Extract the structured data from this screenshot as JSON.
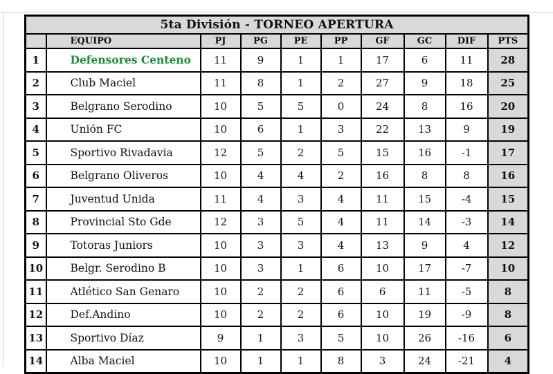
{
  "colors": {
    "header_bg": "#d9d9d9",
    "pts_column_bg": "#d9d9d9",
    "border": "#000000",
    "leader_green": "#1f8b3e",
    "text": "#111111",
    "gridline": "#cacaca",
    "page_bg": "#ffffff"
  },
  "table": {
    "title": "5ta División - TORNEO APERTURA",
    "columns": [
      "",
      "EQUIPO",
      "PJ",
      "PG",
      "PE",
      "PP",
      "GF",
      "GC",
      "DIF",
      "PTS"
    ],
    "rows": [
      {
        "pos": "1",
        "equipo": "Defensores Centeno",
        "pj": "11",
        "pg": "9",
        "pe": "1",
        "pp": "1",
        "gf": "17",
        "gc": "6",
        "dif": "11",
        "pts": "28",
        "leader": true
      },
      {
        "pos": "2",
        "equipo": "Club Maciel",
        "pj": "11",
        "pg": "8",
        "pe": "1",
        "pp": "2",
        "gf": "27",
        "gc": "9",
        "dif": "18",
        "pts": "25",
        "leader": false
      },
      {
        "pos": "3",
        "equipo": "Belgrano Serodino",
        "pj": "10",
        "pg": "5",
        "pe": "5",
        "pp": "0",
        "gf": "24",
        "gc": "8",
        "dif": "16",
        "pts": "20",
        "leader": false
      },
      {
        "pos": "4",
        "equipo": "Unión FC",
        "pj": "10",
        "pg": "6",
        "pe": "1",
        "pp": "3",
        "gf": "22",
        "gc": "13",
        "dif": "9",
        "pts": "19",
        "leader": false
      },
      {
        "pos": "5",
        "equipo": "Sportivo Rivadavia",
        "pj": "12",
        "pg": "5",
        "pe": "2",
        "pp": "5",
        "gf": "15",
        "gc": "16",
        "dif": "-1",
        "pts": "17",
        "leader": false
      },
      {
        "pos": "6",
        "equipo": "Belgrano Oliveros",
        "pj": "10",
        "pg": "4",
        "pe": "4",
        "pp": "2",
        "gf": "16",
        "gc": "8",
        "dif": "8",
        "pts": "16",
        "leader": false
      },
      {
        "pos": "7",
        "equipo": "Juventud Unida",
        "pj": "11",
        "pg": "4",
        "pe": "3",
        "pp": "4",
        "gf": "11",
        "gc": "15",
        "dif": "-4",
        "pts": "15",
        "leader": false
      },
      {
        "pos": "8",
        "equipo": "Provincial Sto Gde",
        "pj": "12",
        "pg": "3",
        "pe": "5",
        "pp": "4",
        "gf": "11",
        "gc": "14",
        "dif": "-3",
        "pts": "14",
        "leader": false
      },
      {
        "pos": "9",
        "equipo": "Totoras Juniors",
        "pj": "10",
        "pg": "3",
        "pe": "3",
        "pp": "4",
        "gf": "13",
        "gc": "9",
        "dif": "4",
        "pts": "12",
        "leader": false
      },
      {
        "pos": "10",
        "equipo": "Belgr. Serodino B",
        "pj": "10",
        "pg": "3",
        "pe": "1",
        "pp": "6",
        "gf": "10",
        "gc": "17",
        "dif": "-7",
        "pts": "10",
        "leader": false
      },
      {
        "pos": "11",
        "equipo": "Atlético San Genaro",
        "pj": "10",
        "pg": "2",
        "pe": "2",
        "pp": "6",
        "gf": "6",
        "gc": "11",
        "dif": "-5",
        "pts": "8",
        "leader": false
      },
      {
        "pos": "12",
        "equipo": "Def.Andino",
        "pj": "10",
        "pg": "2",
        "pe": "2",
        "pp": "6",
        "gf": "10",
        "gc": "19",
        "dif": "-9",
        "pts": "8",
        "leader": false
      },
      {
        "pos": "13",
        "equipo": "Sportivo Díaz",
        "pj": "9",
        "pg": "1",
        "pe": "3",
        "pp": "5",
        "gf": "10",
        "gc": "26",
        "dif": "-16",
        "pts": "6",
        "leader": false
      },
      {
        "pos": "14",
        "equipo": "Alba Maciel",
        "pj": "10",
        "pg": "1",
        "pe": "1",
        "pp": "8",
        "gf": "3",
        "gc": "24",
        "dif": "-21",
        "pts": "4",
        "leader": false
      }
    ]
  }
}
